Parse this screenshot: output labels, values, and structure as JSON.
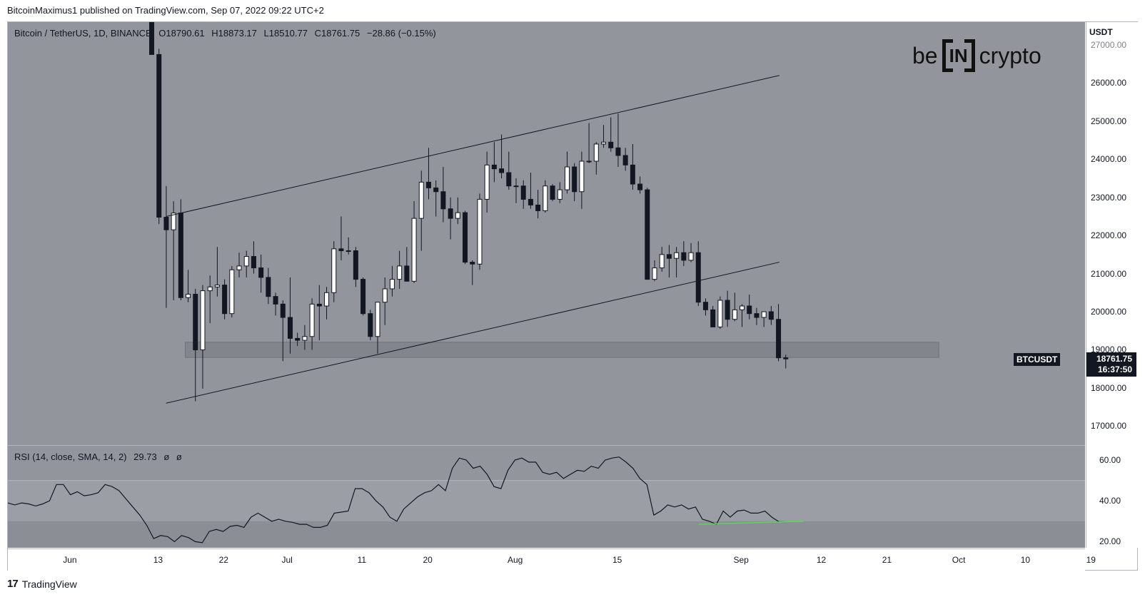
{
  "header": {
    "publisher_text": "BitcoinMaximus1 published on TradingView.com, Sep 07, 2022 09:22 UTC+2"
  },
  "legend": {
    "symbol": "Bitcoin / TetherUS, 1D, BINANCE",
    "o_label": "O",
    "open": "18790.61",
    "h_label": "H",
    "high": "18873.17",
    "l_label": "L",
    "low": "18510.77",
    "c_label": "C",
    "close": "18761.75",
    "change": "−28.86 (−0.15%)"
  },
  "rsi_legend": {
    "title": "RSI (14, close, SMA, 14, 2)",
    "value": "29.73",
    "extra1": "ø",
    "extra2": "ø"
  },
  "brand": {
    "left": "be",
    "mid": "IN",
    "right": "crypto"
  },
  "price_axis": {
    "unit": "USDT",
    "labels": [
      "27000.00",
      "26000.00",
      "25000.00",
      "24000.00",
      "23000.00",
      "22000.00",
      "21000.00",
      "20000.00",
      "19000.00",
      "18000.00",
      "17000.00"
    ]
  },
  "rsi_axis": {
    "labels": [
      "60.00",
      "40.00",
      "20.00"
    ]
  },
  "time_axis": {
    "labels": [
      "Jun",
      "13",
      "22",
      "Jul",
      "11",
      "20",
      "Aug",
      "15",
      "Sep",
      "12",
      "21",
      "Oct",
      "10",
      "19"
    ]
  },
  "badges": {
    "ticker": "BTCUSDT",
    "last_price": "18761.75",
    "countdown": "16:37:50"
  },
  "footer": {
    "brand": "TradingView"
  },
  "colors": {
    "pane_bg": "#92959c",
    "up_candle": "#ffffff",
    "down_candle": "#131722",
    "support_zone": "#7f8288",
    "rsi_line": "#131722",
    "divergence_line": "#5fd35a"
  },
  "chart_data": {
    "type": "candlestick",
    "symbol": "Bitcoin / TetherUS",
    "interval": "1D",
    "exchange": "BINANCE",
    "ylim": [
      16500,
      27600
    ],
    "x_tick_labels": [
      "Jun",
      "13",
      "22",
      "Jul",
      "11",
      "20",
      "Aug",
      "15",
      "Sep",
      "12",
      "21",
      "Oct",
      "10",
      "19"
    ],
    "candles": [
      {
        "date": "2022-06-12",
        "o": 28300,
        "h": 28550,
        "l": 26800,
        "c": 26750
      },
      {
        "date": "2022-06-13",
        "o": 26750,
        "h": 26900,
        "l": 22300,
        "c": 22480
      },
      {
        "date": "2022-06-14",
        "o": 22480,
        "h": 23300,
        "l": 20100,
        "c": 22150
      },
      {
        "date": "2022-06-15",
        "o": 22150,
        "h": 22900,
        "l": 20300,
        "c": 22590
      },
      {
        "date": "2022-06-16",
        "o": 22590,
        "h": 22950,
        "l": 20300,
        "c": 20370
      },
      {
        "date": "2022-06-17",
        "o": 20370,
        "h": 21100,
        "l": 20250,
        "c": 20460
      },
      {
        "date": "2022-06-18",
        "o": 20460,
        "h": 20600,
        "l": 17650,
        "c": 19000
      },
      {
        "date": "2022-06-19",
        "o": 19000,
        "h": 20700,
        "l": 17980,
        "c": 20550
      },
      {
        "date": "2022-06-20",
        "o": 20550,
        "h": 20950,
        "l": 19700,
        "c": 20650
      },
      {
        "date": "2022-06-21",
        "o": 20650,
        "h": 21700,
        "l": 20400,
        "c": 20700
      },
      {
        "date": "2022-06-22",
        "o": 20700,
        "h": 20850,
        "l": 19800,
        "c": 19950
      },
      {
        "date": "2022-06-23",
        "o": 19950,
        "h": 21200,
        "l": 19850,
        "c": 21100
      },
      {
        "date": "2022-06-24",
        "o": 21100,
        "h": 21550,
        "l": 20900,
        "c": 21200
      },
      {
        "date": "2022-06-25",
        "o": 21200,
        "h": 21600,
        "l": 20900,
        "c": 21450
      },
      {
        "date": "2022-06-26",
        "o": 21450,
        "h": 21850,
        "l": 21000,
        "c": 21150
      },
      {
        "date": "2022-06-27",
        "o": 21150,
        "h": 21500,
        "l": 20500,
        "c": 20900
      },
      {
        "date": "2022-06-28",
        "o": 20900,
        "h": 21150,
        "l": 20200,
        "c": 20400
      },
      {
        "date": "2022-06-29",
        "o": 20400,
        "h": 20500,
        "l": 19900,
        "c": 20200
      },
      {
        "date": "2022-06-30",
        "o": 20200,
        "h": 20300,
        "l": 18700,
        "c": 19850
      },
      {
        "date": "2022-07-01",
        "o": 19850,
        "h": 20900,
        "l": 18900,
        "c": 19300
      },
      {
        "date": "2022-07-02",
        "o": 19300,
        "h": 19450,
        "l": 19100,
        "c": 19250
      },
      {
        "date": "2022-07-03",
        "o": 19250,
        "h": 19650,
        "l": 19000,
        "c": 19350
      },
      {
        "date": "2022-07-04",
        "o": 19350,
        "h": 20350,
        "l": 19000,
        "c": 20200
      },
      {
        "date": "2022-07-05",
        "o": 20200,
        "h": 20700,
        "l": 19250,
        "c": 20150
      },
      {
        "date": "2022-07-06",
        "o": 20150,
        "h": 20650,
        "l": 19800,
        "c": 20500
      },
      {
        "date": "2022-07-07",
        "o": 20500,
        "h": 21850,
        "l": 20250,
        "c": 21650
      },
      {
        "date": "2022-07-08",
        "o": 21650,
        "h": 22500,
        "l": 21350,
        "c": 21600
      },
      {
        "date": "2022-07-09",
        "o": 21600,
        "h": 21950,
        "l": 21500,
        "c": 21600
      },
      {
        "date": "2022-07-10",
        "o": 21600,
        "h": 21700,
        "l": 20650,
        "c": 20850
      },
      {
        "date": "2022-07-11",
        "o": 20850,
        "h": 20900,
        "l": 19900,
        "c": 19950
      },
      {
        "date": "2022-07-12",
        "o": 19950,
        "h": 20050,
        "l": 19250,
        "c": 19350
      },
      {
        "date": "2022-07-13",
        "o": 19350,
        "h": 20250,
        "l": 18900,
        "c": 20250
      },
      {
        "date": "2022-07-14",
        "o": 20250,
        "h": 20900,
        "l": 19650,
        "c": 20600
      },
      {
        "date": "2022-07-15",
        "o": 20600,
        "h": 21200,
        "l": 20400,
        "c": 20850
      },
      {
        "date": "2022-07-16",
        "o": 20850,
        "h": 21600,
        "l": 20600,
        "c": 21200
      },
      {
        "date": "2022-07-17",
        "o": 21200,
        "h": 21700,
        "l": 20800,
        "c": 20800
      },
      {
        "date": "2022-07-18",
        "o": 20800,
        "h": 22900,
        "l": 20750,
        "c": 22450
      },
      {
        "date": "2022-07-19",
        "o": 22450,
        "h": 23700,
        "l": 21600,
        "c": 23400
      },
      {
        "date": "2022-07-20",
        "o": 23400,
        "h": 24300,
        "l": 22950,
        "c": 23250
      },
      {
        "date": "2022-07-21",
        "o": 23250,
        "h": 23450,
        "l": 22500,
        "c": 23150
      },
      {
        "date": "2022-07-22",
        "o": 23150,
        "h": 23800,
        "l": 22350,
        "c": 22700
      },
      {
        "date": "2022-07-23",
        "o": 22700,
        "h": 23000,
        "l": 21900,
        "c": 22450
      },
      {
        "date": "2022-07-24",
        "o": 22450,
        "h": 23000,
        "l": 22300,
        "c": 22600
      },
      {
        "date": "2022-07-25",
        "o": 22600,
        "h": 22650,
        "l": 21250,
        "c": 21300
      },
      {
        "date": "2022-07-26",
        "o": 21300,
        "h": 21350,
        "l": 20700,
        "c": 21250
      },
      {
        "date": "2022-07-27",
        "o": 21250,
        "h": 23100,
        "l": 21100,
        "c": 22950
      },
      {
        "date": "2022-07-28",
        "o": 22950,
        "h": 24200,
        "l": 22600,
        "c": 23850
      },
      {
        "date": "2022-07-29",
        "o": 23850,
        "h": 24450,
        "l": 23400,
        "c": 23750
      },
      {
        "date": "2022-07-30",
        "o": 23750,
        "h": 24650,
        "l": 23500,
        "c": 23650
      },
      {
        "date": "2022-07-31",
        "o": 23650,
        "h": 24200,
        "l": 23200,
        "c": 23300
      },
      {
        "date": "2022-08-01",
        "o": 23300,
        "h": 23500,
        "l": 22850,
        "c": 23300
      },
      {
        "date": "2022-08-02",
        "o": 23300,
        "h": 23450,
        "l": 22700,
        "c": 22950
      },
      {
        "date": "2022-08-03",
        "o": 22950,
        "h": 23650,
        "l": 22700,
        "c": 22800
      },
      {
        "date": "2022-08-04",
        "o": 22800,
        "h": 23200,
        "l": 22450,
        "c": 22650
      },
      {
        "date": "2022-08-05",
        "o": 22650,
        "h": 23450,
        "l": 22600,
        "c": 23300
      },
      {
        "date": "2022-08-06",
        "o": 23300,
        "h": 23350,
        "l": 22900,
        "c": 22950
      },
      {
        "date": "2022-08-07",
        "o": 22950,
        "h": 23400,
        "l": 22850,
        "c": 23200
      },
      {
        "date": "2022-08-08",
        "o": 23200,
        "h": 24200,
        "l": 23100,
        "c": 23800
      },
      {
        "date": "2022-08-09",
        "o": 23800,
        "h": 23900,
        "l": 22900,
        "c": 23150
      },
      {
        "date": "2022-08-10",
        "o": 23150,
        "h": 24200,
        "l": 22700,
        "c": 23950
      },
      {
        "date": "2022-08-11",
        "o": 23950,
        "h": 24950,
        "l": 23900,
        "c": 23950
      },
      {
        "date": "2022-08-12",
        "o": 23950,
        "h": 24450,
        "l": 23600,
        "c": 24400
      },
      {
        "date": "2022-08-13",
        "o": 24400,
        "h": 24900,
        "l": 24300,
        "c": 24450
      },
      {
        "date": "2022-08-14",
        "o": 24450,
        "h": 25100,
        "l": 24200,
        "c": 24300
      },
      {
        "date": "2022-08-15",
        "o": 24300,
        "h": 25200,
        "l": 23800,
        "c": 24100
      },
      {
        "date": "2022-08-16",
        "o": 24100,
        "h": 24300,
        "l": 23700,
        "c": 23850
      },
      {
        "date": "2022-08-17",
        "o": 23850,
        "h": 24400,
        "l": 23200,
        "c": 23350
      },
      {
        "date": "2022-08-18",
        "o": 23350,
        "h": 23550,
        "l": 23100,
        "c": 23200
      },
      {
        "date": "2022-08-19",
        "o": 23200,
        "h": 23250,
        "l": 20850,
        "c": 20850
      },
      {
        "date": "2022-08-20",
        "o": 20850,
        "h": 21350,
        "l": 20800,
        "c": 21150
      },
      {
        "date": "2022-08-21",
        "o": 21150,
        "h": 21700,
        "l": 21050,
        "c": 21500
      },
      {
        "date": "2022-08-22",
        "o": 21500,
        "h": 21750,
        "l": 20900,
        "c": 21400
      },
      {
        "date": "2022-08-23",
        "o": 21400,
        "h": 21700,
        "l": 20900,
        "c": 21550
      },
      {
        "date": "2022-08-24",
        "o": 21550,
        "h": 21850,
        "l": 21200,
        "c": 21350
      },
      {
        "date": "2022-08-25",
        "o": 21350,
        "h": 21800,
        "l": 21300,
        "c": 21550
      },
      {
        "date": "2022-08-26",
        "o": 21550,
        "h": 21850,
        "l": 20150,
        "c": 20250
      },
      {
        "date": "2022-08-27",
        "o": 20250,
        "h": 20350,
        "l": 19900,
        "c": 20050
      },
      {
        "date": "2022-08-28",
        "o": 20050,
        "h": 20150,
        "l": 19600,
        "c": 19600
      },
      {
        "date": "2022-08-29",
        "o": 19600,
        "h": 20400,
        "l": 19550,
        "c": 20300
      },
      {
        "date": "2022-08-30",
        "o": 20300,
        "h": 20550,
        "l": 19600,
        "c": 19800
      },
      {
        "date": "2022-08-31",
        "o": 19800,
        "h": 20500,
        "l": 19750,
        "c": 20050
      },
      {
        "date": "2022-09-01",
        "o": 20050,
        "h": 20200,
        "l": 19600,
        "c": 20150
      },
      {
        "date": "2022-09-02",
        "o": 20150,
        "h": 20450,
        "l": 19800,
        "c": 19950
      },
      {
        "date": "2022-09-03",
        "o": 19950,
        "h": 20100,
        "l": 19650,
        "c": 19850
      },
      {
        "date": "2022-09-04",
        "o": 19850,
        "h": 20000,
        "l": 19600,
        "c": 20000
      },
      {
        "date": "2022-09-05",
        "o": 20000,
        "h": 20150,
        "l": 19650,
        "c": 19800
      },
      {
        "date": "2022-09-06",
        "o": 19800,
        "h": 20200,
        "l": 18700,
        "c": 18790
      },
      {
        "date": "2022-09-07",
        "o": 18790.61,
        "h": 18873.17,
        "l": 18510.77,
        "c": 18761.75
      }
    ],
    "drawings": {
      "channel_upper": [
        {
          "date": "2022-06-13",
          "price": 22500
        },
        {
          "date": "2022-09-07",
          "price": 26200
        }
      ],
      "channel_lower": [
        {
          "date": "2022-06-13",
          "price": 17600
        },
        {
          "date": "2022-09-07",
          "price": 21300
        }
      ],
      "support_zone": {
        "from_date": "2022-06-17",
        "to_date": "2022-09-28",
        "low": 18800,
        "high": 19200
      }
    },
    "rsi": {
      "ylim": [
        17,
        67
      ],
      "upper_band": 50,
      "lower_band": 30,
      "values": [
        39,
        38,
        39,
        38.5,
        37.5,
        38.5,
        40,
        48,
        48,
        43,
        44.5,
        42.5,
        43,
        44,
        48,
        47,
        45,
        41,
        37,
        33,
        28,
        21.5,
        23,
        22.5,
        20,
        23,
        22,
        20,
        19.5,
        25,
        26,
        25,
        27.5,
        28,
        27,
        32,
        34,
        32,
        30,
        31,
        30,
        29.5,
        28.5,
        28.5,
        27,
        27,
        28,
        34,
        34.5,
        35,
        46,
        46,
        44,
        40,
        37,
        32,
        30,
        36,
        39,
        42,
        44,
        45,
        48,
        45,
        56,
        61,
        60,
        56,
        57,
        53,
        47,
        46,
        55,
        60,
        61,
        59,
        59,
        54,
        53,
        54,
        51,
        53,
        55,
        54.5,
        57,
        56,
        60,
        61,
        61.5,
        59,
        56,
        51,
        48,
        33,
        35,
        38,
        37,
        38,
        36,
        37,
        31,
        30,
        28.5,
        35,
        32,
        35,
        35.5,
        34,
        34,
        35,
        32,
        29.8,
        29.73
      ],
      "divergence_line": [
        {
          "date": "2022-08-28",
          "value": 28.5
        },
        {
          "date": "2022-09-08",
          "value": 30
        }
      ]
    }
  }
}
